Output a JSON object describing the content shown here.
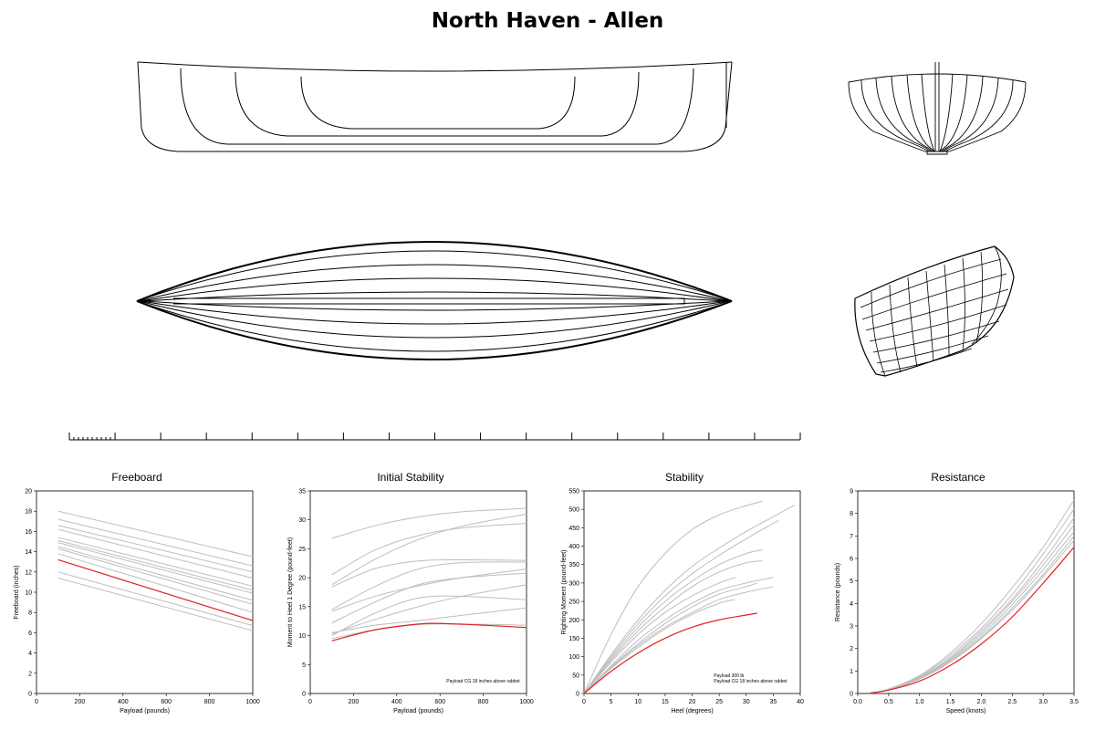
{
  "title": "North Haven - Allen",
  "drawings": {
    "views": [
      "profile",
      "body-plan",
      "plan",
      "perspective"
    ],
    "scale_bar": {
      "major_divisions": 16,
      "minor_divisions": 10
    },
    "line_color": "#000000"
  },
  "chart_data": [
    {
      "type": "line",
      "title": "Freeboard",
      "xlabel": "Payload (pounds)",
      "ylabel": "Freeboard (inches)",
      "xlim": [
        0,
        1000
      ],
      "ylim": [
        0,
        20
      ],
      "xticks": [
        0,
        200,
        400,
        600,
        800,
        1000
      ],
      "yticks": [
        0,
        2,
        4,
        6,
        8,
        10,
        12,
        14,
        16,
        18,
        20
      ],
      "grey_series": [
        {
          "x": [
            100,
            1000
          ],
          "y": [
            18.0,
            13.5
          ]
        },
        {
          "x": [
            100,
            1000
          ],
          "y": [
            17.2,
            12.6
          ]
        },
        {
          "x": [
            100,
            1000
          ],
          "y": [
            16.6,
            12.0
          ]
        },
        {
          "x": [
            100,
            1000
          ],
          "y": [
            16.2,
            11.4
          ]
        },
        {
          "x": [
            100,
            1000
          ],
          "y": [
            15.4,
            10.6
          ]
        },
        {
          "x": [
            100,
            1000
          ],
          "y": [
            15.1,
            10.2
          ]
        },
        {
          "x": [
            100,
            1000
          ],
          "y": [
            14.9,
            9.9
          ]
        },
        {
          "x": [
            100,
            1000
          ],
          "y": [
            14.5,
            9.2
          ]
        },
        {
          "x": [
            100,
            1000
          ],
          "y": [
            14.3,
            8.8
          ]
        },
        {
          "x": [
            100,
            1000
          ],
          "y": [
            13.8,
            8.0
          ]
        },
        {
          "x": [
            100,
            1000
          ],
          "y": [
            12.0,
            6.7
          ]
        },
        {
          "x": [
            100,
            1000
          ],
          "y": [
            11.4,
            6.2
          ]
        }
      ],
      "red_series": {
        "x": [
          100,
          1000
        ],
        "y": [
          13.2,
          7.2
        ]
      }
    },
    {
      "type": "line",
      "title": "Initial Stability",
      "xlabel": "Payload (pounds)",
      "ylabel": "Moment to Heel 1 Degree  (pound-feet)",
      "xlim": [
        0,
        1000
      ],
      "ylim": [
        0,
        35
      ],
      "xticks": [
        0,
        200,
        400,
        600,
        800,
        1000
      ],
      "yticks": [
        0,
        5,
        10,
        15,
        20,
        25,
        30,
        35
      ],
      "annotation": "Payload CG 18 inches above rabbet",
      "grey_series": [
        {
          "x": [
            100,
            300,
            500,
            700,
            1000
          ],
          "y": [
            26.8,
            29.0,
            30.5,
            31.4,
            32.0
          ]
        },
        {
          "x": [
            100,
            300,
            500,
            700,
            1000
          ],
          "y": [
            18.8,
            23.2,
            26.6,
            28.9,
            31.0
          ]
        },
        {
          "x": [
            100,
            300,
            500,
            700,
            1000
          ],
          "y": [
            20.5,
            24.8,
            27.3,
            28.6,
            29.4
          ]
        },
        {
          "x": [
            100,
            300,
            500,
            700,
            1000
          ],
          "y": [
            18.4,
            21.6,
            22.9,
            23.1,
            23.0
          ]
        },
        {
          "x": [
            100,
            300,
            500,
            700,
            1000
          ],
          "y": [
            14.5,
            18.5,
            21.5,
            22.6,
            22.7
          ]
        },
        {
          "x": [
            100,
            300,
            500,
            700,
            1000
          ],
          "y": [
            14.2,
            16.8,
            18.6,
            20.0,
            21.5
          ]
        },
        {
          "x": [
            100,
            300,
            500,
            700,
            1000
          ],
          "y": [
            12.2,
            15.8,
            18.8,
            20.0,
            20.8
          ]
        },
        {
          "x": [
            100,
            300,
            500,
            700,
            1000
          ],
          "y": [
            10.3,
            12.8,
            15.0,
            16.8,
            18.8
          ]
        },
        {
          "x": [
            100,
            300,
            500,
            700,
            1000
          ],
          "y": [
            10.0,
            13.9,
            16.5,
            16.8,
            16.2
          ]
        },
        {
          "x": [
            100,
            300,
            500,
            700,
            1000
          ],
          "y": [
            10.5,
            11.8,
            12.6,
            13.5,
            14.8
          ]
        },
        {
          "x": [
            100,
            300,
            500,
            700,
            1000
          ],
          "y": [
            9.5,
            11.0,
            11.9,
            12.0,
            11.8
          ]
        }
      ],
      "red_series": {
        "x": [
          100,
          300,
          500,
          600,
          800,
          1000
        ],
        "y": [
          9.1,
          11.0,
          12.0,
          12.1,
          11.8,
          11.4
        ]
      }
    },
    {
      "type": "line",
      "title": "Stability",
      "xlabel": "Heel  (degrees)",
      "ylabel": "Righting Moment  (pound-feet)",
      "xlim": [
        0,
        40
      ],
      "ylim": [
        0,
        550
      ],
      "xticks": [
        0,
        5,
        10,
        15,
        20,
        25,
        30,
        35,
        40
      ],
      "yticks": [
        0,
        50,
        100,
        150,
        200,
        250,
        300,
        350,
        400,
        450,
        500,
        550
      ],
      "annotation": [
        "Payload 300 lb",
        "Payload CG 18 inches above rabbet"
      ],
      "grey_series": [
        {
          "x": [
            0,
            5,
            10,
            15,
            20,
            25,
            30,
            33
          ],
          "y": [
            0,
            160,
            290,
            380,
            445,
            485,
            510,
            522
          ]
        },
        {
          "x": [
            0,
            5,
            10,
            15,
            20,
            25,
            30,
            35,
            39
          ],
          "y": [
            0,
            105,
            200,
            280,
            345,
            395,
            440,
            480,
            512
          ]
        },
        {
          "x": [
            0,
            5,
            10,
            15,
            20,
            25,
            30,
            36
          ],
          "y": [
            0,
            100,
            190,
            265,
            325,
            375,
            420,
            470
          ]
        },
        {
          "x": [
            0,
            5,
            10,
            15,
            20,
            25,
            30,
            33
          ],
          "y": [
            0,
            95,
            180,
            250,
            305,
            350,
            380,
            390
          ]
        },
        {
          "x": [
            0,
            5,
            10,
            15,
            20,
            25,
            30,
            33
          ],
          "y": [
            0,
            90,
            170,
            235,
            290,
            330,
            355,
            360
          ]
        },
        {
          "x": [
            0,
            5,
            10,
            15,
            20,
            25,
            28
          ],
          "y": [
            0,
            85,
            160,
            220,
            265,
            300,
            315
          ]
        },
        {
          "x": [
            0,
            5,
            10,
            15,
            20,
            25,
            30,
            35
          ],
          "y": [
            0,
            75,
            145,
            200,
            245,
            280,
            300,
            315
          ]
        },
        {
          "x": [
            0,
            5,
            10,
            15,
            20,
            25,
            30,
            35
          ],
          "y": [
            0,
            70,
            130,
            180,
            220,
            255,
            275,
            290
          ]
        },
        {
          "x": [
            0,
            5,
            10,
            15,
            20,
            25,
            30,
            32
          ],
          "y": [
            0,
            72,
            135,
            190,
            235,
            270,
            290,
            300
          ]
        },
        {
          "x": [
            0,
            5,
            10,
            15,
            20,
            25,
            28
          ],
          "y": [
            0,
            68,
            125,
            175,
            215,
            245,
            255
          ]
        }
      ],
      "red_series": {
        "x": [
          0,
          5,
          10,
          15,
          20,
          25,
          30,
          32
        ],
        "y": [
          0,
          60,
          110,
          150,
          180,
          200,
          213,
          218
        ]
      }
    },
    {
      "type": "line",
      "title": "Resistance",
      "xlabel": "Speed  (knots)",
      "ylabel": "Resistance (pounds)",
      "xlim": [
        0,
        3.5
      ],
      "ylim": [
        0,
        9
      ],
      "xticks": [
        "0.0",
        "0.5",
        "1.0",
        "1.5",
        "2.0",
        "2.5",
        "3.0",
        "3.5"
      ],
      "yticks": [
        0,
        1,
        2,
        3,
        4,
        5,
        6,
        7,
        8,
        9
      ],
      "grey_series": [
        {
          "x": [
            0.2,
            0.5,
            1.0,
            1.5,
            2.0,
            2.5,
            3.0,
            3.5
          ],
          "y": [
            0.02,
            0.2,
            0.8,
            1.8,
            3.1,
            4.7,
            6.5,
            8.6
          ]
        },
        {
          "x": [
            0.2,
            0.5,
            1.0,
            1.5,
            2.0,
            2.5,
            3.0,
            3.5
          ],
          "y": [
            0.02,
            0.2,
            0.75,
            1.7,
            2.9,
            4.4,
            6.2,
            8.2
          ]
        },
        {
          "x": [
            0.2,
            0.5,
            1.0,
            1.5,
            2.0,
            2.5,
            3.0,
            3.5
          ],
          "y": [
            0.02,
            0.19,
            0.72,
            1.6,
            2.8,
            4.2,
            5.9,
            7.8
          ]
        },
        {
          "x": [
            0.2,
            0.5,
            1.0,
            1.5,
            2.0,
            2.5,
            3.0,
            3.5
          ],
          "y": [
            0.02,
            0.18,
            0.7,
            1.55,
            2.7,
            4.1,
            5.7,
            7.5
          ]
        },
        {
          "x": [
            0.2,
            0.5,
            1.0,
            1.5,
            2.0,
            2.5,
            3.0,
            3.5
          ],
          "y": [
            0.02,
            0.18,
            0.68,
            1.5,
            2.6,
            3.95,
            5.5,
            7.2
          ]
        },
        {
          "x": [
            0.2,
            0.5,
            1.0,
            1.5,
            2.0,
            2.5,
            3.0,
            3.5
          ],
          "y": [
            0.02,
            0.17,
            0.66,
            1.45,
            2.5,
            3.8,
            5.3,
            7.0
          ]
        },
        {
          "x": [
            0.2,
            0.5,
            1.0,
            1.5,
            2.0,
            2.5,
            3.0,
            3.5
          ],
          "y": [
            0.02,
            0.17,
            0.64,
            1.4,
            2.45,
            3.7,
            5.2,
            6.8
          ]
        }
      ],
      "red_series": {
        "x": [
          0.2,
          0.5,
          1.0,
          1.5,
          2.0,
          2.5,
          3.0,
          3.5
        ],
        "y": [
          0.02,
          0.15,
          0.55,
          1.25,
          2.2,
          3.4,
          4.9,
          6.5
        ]
      }
    }
  ]
}
